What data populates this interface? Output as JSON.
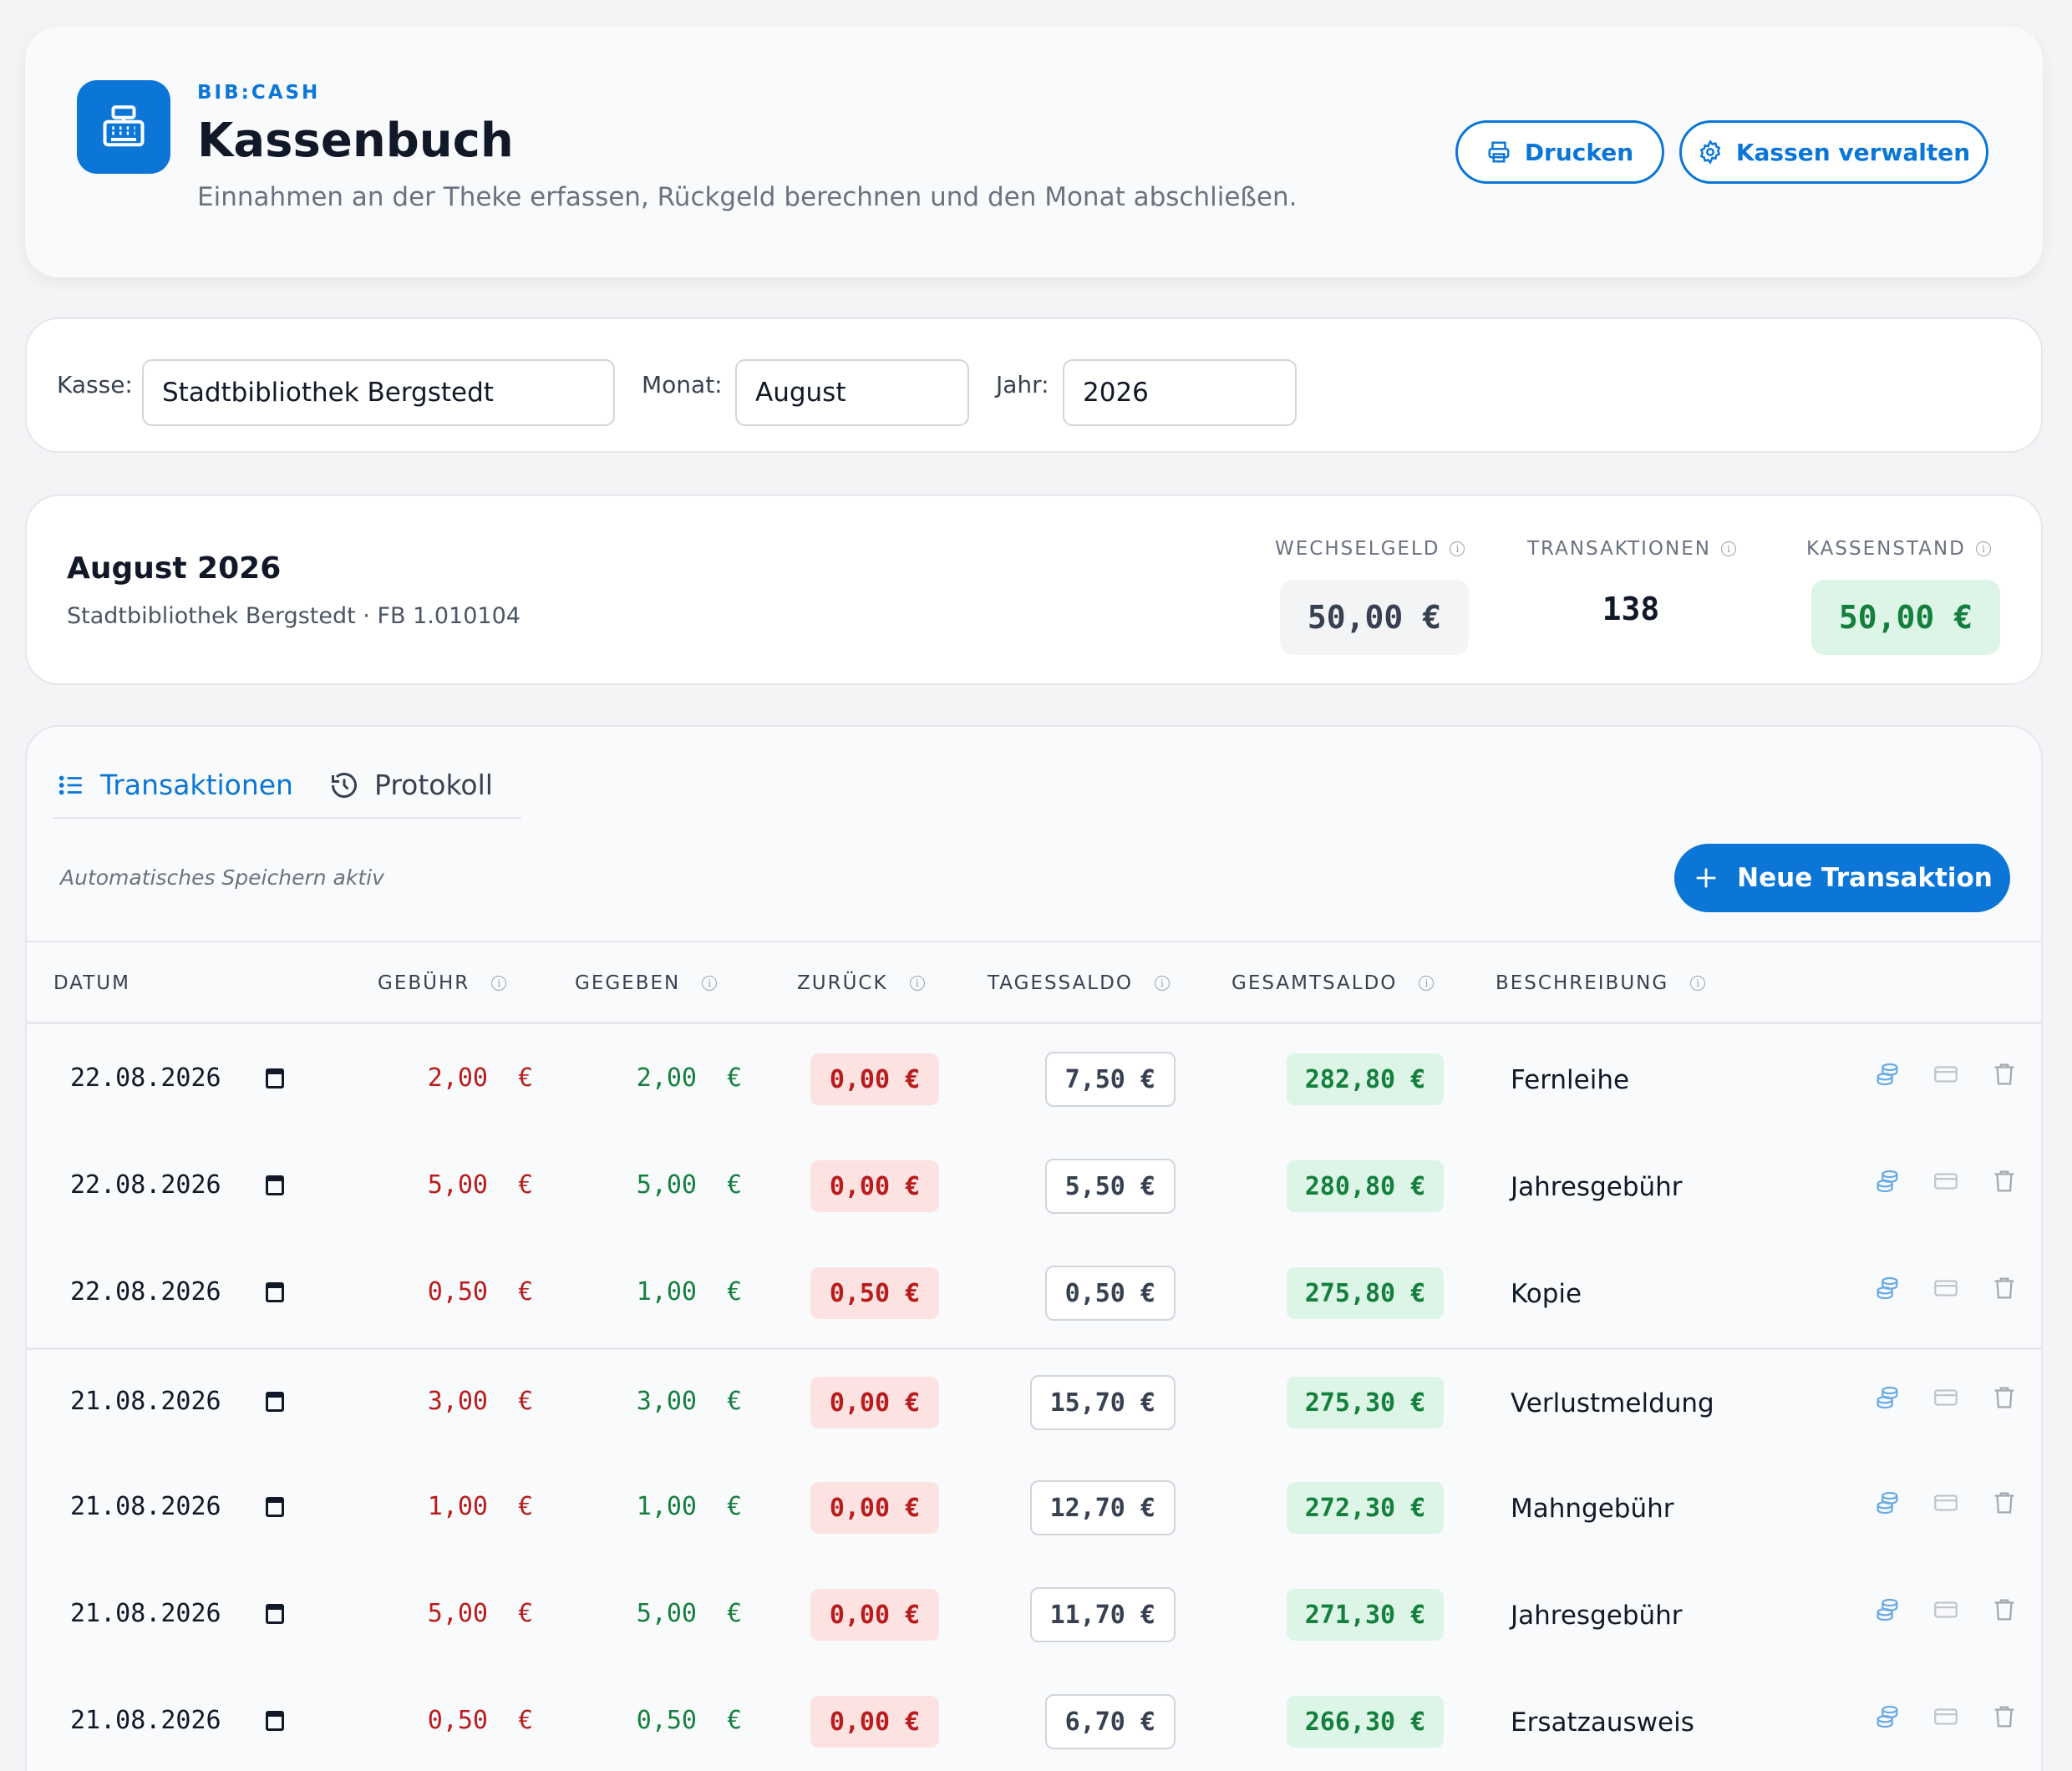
{
  "header": {
    "brand": "BIB:CASH",
    "title": "Kassenbuch",
    "subtitle": "Einnahmen an der Theke erfassen, Rückgeld berechnen und den Monat abschließen.",
    "print_label": "Drucken",
    "manage_label": "Kassen verwalten"
  },
  "filters": {
    "register_label": "Kasse:",
    "register_value": "Stadtbibliothek Bergstedt",
    "month_label": "Monat:",
    "month_value": "August",
    "year_label": "Jahr:",
    "year_value": "2026"
  },
  "summary": {
    "period": "August 2026",
    "detail": "Stadtbibliothek Bergstedt · FB 1.010104",
    "change_label": "WECHSELGELD",
    "change_value": "50,00 €",
    "tx_label": "TRANSAKTIONEN",
    "tx_value": "138",
    "balance_label": "KASSENSTAND",
    "balance_value": "50,00 €"
  },
  "tabs": {
    "transactions": "Transaktionen",
    "log": "Protokoll"
  },
  "toolbar": {
    "autosave": "Automatisches Speichern aktiv",
    "new_label": "Neue Transaktion"
  },
  "table": {
    "headers": {
      "date": "DATUM",
      "fee": "GEBÜHR",
      "given": "GEGEBEN",
      "back": "ZURÜCK",
      "day_balance": "TAGESSALDO",
      "total_balance": "GESAMTSALDO",
      "description": "BESCHREIBUNG"
    },
    "currency": "€",
    "rows": [
      {
        "date": "22.08.2026",
        "fee": "2,00",
        "given": "2,00",
        "back": "0,00 €",
        "day": "7,50 €",
        "total": "282,80 €",
        "desc": "Fernleihe"
      },
      {
        "date": "22.08.2026",
        "fee": "5,00",
        "given": "5,00",
        "back": "0,00 €",
        "day": "5,50 €",
        "total": "280,80 €",
        "desc": "Jahresgebühr"
      },
      {
        "date": "22.08.2026",
        "fee": "0,50",
        "given": "1,00",
        "back": "0,50 €",
        "day": "0,50 €",
        "total": "275,80 €",
        "desc": "Kopie"
      },
      {
        "date": "21.08.2026",
        "fee": "3,00",
        "given": "3,00",
        "back": "0,00 €",
        "day": "15,70 €",
        "total": "275,30 €",
        "desc": "Verlustmeldung"
      },
      {
        "date": "21.08.2026",
        "fee": "1,00",
        "given": "1,00",
        "back": "0,00 €",
        "day": "12,70 €",
        "total": "272,30 €",
        "desc": "Mahngebühr"
      },
      {
        "date": "21.08.2026",
        "fee": "5,00",
        "given": "5,00",
        "back": "0,00 €",
        "day": "11,70 €",
        "total": "271,30 €",
        "desc": "Jahresgebühr"
      },
      {
        "date": "21.08.2026",
        "fee": "0,50",
        "given": "0,50",
        "back": "0,00 €",
        "day": "6,70 €",
        "total": "266,30 €",
        "desc": "Ersatzausweis"
      }
    ]
  },
  "colors": {
    "accent": "#0b76d6",
    "fee": "#b91c1c",
    "given": "#15803d",
    "back_bg": "#fde2e2",
    "total_bg": "#dcf5e7"
  }
}
